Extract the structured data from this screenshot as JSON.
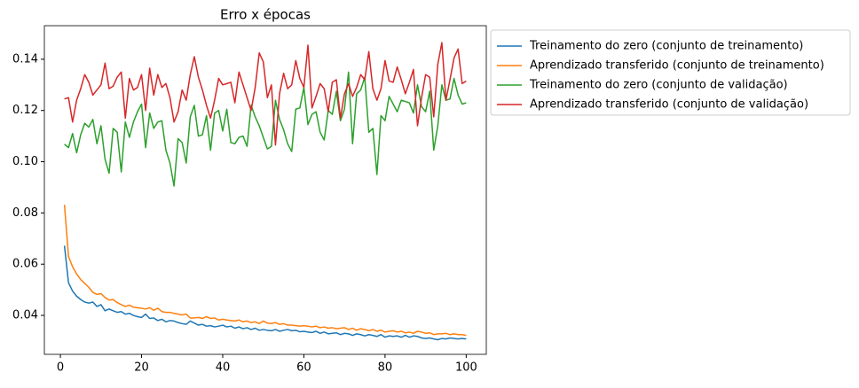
{
  "chart_data": {
    "type": "line",
    "title": "Erro x épocas",
    "x": [
      1,
      2,
      3,
      4,
      5,
      6,
      7,
      8,
      9,
      10,
      11,
      12,
      13,
      14,
      15,
      16,
      17,
      18,
      19,
      20,
      21,
      22,
      23,
      24,
      25,
      26,
      27,
      28,
      29,
      30,
      31,
      32,
      33,
      34,
      35,
      36,
      37,
      38,
      39,
      40,
      41,
      42,
      43,
      44,
      45,
      46,
      47,
      48,
      49,
      50,
      51,
      52,
      53,
      54,
      55,
      56,
      57,
      58,
      59,
      60,
      61,
      62,
      63,
      64,
      65,
      66,
      67,
      68,
      69,
      70,
      71,
      72,
      73,
      74,
      75,
      76,
      77,
      78,
      79,
      80,
      81,
      82,
      83,
      84,
      85,
      86,
      87,
      88,
      89,
      90,
      91,
      92,
      93,
      94,
      95,
      96,
      97,
      98,
      99,
      100
    ],
    "series": [
      {
        "name": "Treinamento do zero (conjunto de treinamento)",
        "color": "#1f77b4",
        "values": [
          0.0672,
          0.0527,
          0.0495,
          0.0475,
          0.0462,
          0.0452,
          0.0448,
          0.0452,
          0.0435,
          0.0442,
          0.0418,
          0.0425,
          0.0418,
          0.0412,
          0.0415,
          0.0405,
          0.0408,
          0.04,
          0.0395,
          0.0392,
          0.0405,
          0.0388,
          0.039,
          0.038,
          0.0385,
          0.0375,
          0.038,
          0.0378,
          0.0372,
          0.0368,
          0.0365,
          0.0378,
          0.037,
          0.0362,
          0.0365,
          0.0358,
          0.036,
          0.0355,
          0.0358,
          0.0362,
          0.0355,
          0.0358,
          0.035,
          0.0355,
          0.0348,
          0.0352,
          0.0345,
          0.035,
          0.0342,
          0.0345,
          0.0342,
          0.034,
          0.0345,
          0.0338,
          0.0342,
          0.0345,
          0.034,
          0.0342,
          0.0336,
          0.0338,
          0.0335,
          0.0333,
          0.0338,
          0.033,
          0.0335,
          0.0328,
          0.033,
          0.0332,
          0.0325,
          0.033,
          0.0328,
          0.0322,
          0.0328,
          0.0325,
          0.032,
          0.0325,
          0.0322,
          0.0318,
          0.0325,
          0.0315,
          0.032,
          0.0318,
          0.032,
          0.0315,
          0.0322,
          0.0315,
          0.032,
          0.0318,
          0.0312,
          0.031,
          0.0312,
          0.0308,
          0.0305,
          0.031,
          0.0308,
          0.0312,
          0.031,
          0.0308,
          0.031,
          0.0308
        ]
      },
      {
        "name": "Aprendizado transferido (conjunto de treinamento)",
        "color": "#ff7f0e",
        "values": [
          0.0832,
          0.063,
          0.059,
          0.0562,
          0.054,
          0.0525,
          0.051,
          0.049,
          0.0482,
          0.0485,
          0.047,
          0.046,
          0.0462,
          0.045,
          0.0442,
          0.0435,
          0.044,
          0.0432,
          0.043,
          0.0428,
          0.0425,
          0.043,
          0.042,
          0.0428,
          0.0415,
          0.0412,
          0.0412,
          0.0408,
          0.0405,
          0.0402,
          0.0405,
          0.039,
          0.039,
          0.0392,
          0.0388,
          0.0395,
          0.0388,
          0.039,
          0.0382,
          0.0385,
          0.0382,
          0.038,
          0.0378,
          0.0382,
          0.0375,
          0.0378,
          0.0372,
          0.0375,
          0.0368,
          0.0378,
          0.037,
          0.0368,
          0.0372,
          0.0365,
          0.0368,
          0.0362,
          0.0362,
          0.036,
          0.0358,
          0.036,
          0.0358,
          0.0355,
          0.0358,
          0.0352,
          0.0355,
          0.035,
          0.0352,
          0.0348,
          0.035,
          0.0352,
          0.0345,
          0.035,
          0.0342,
          0.0348,
          0.0345,
          0.034,
          0.0345,
          0.0338,
          0.0342,
          0.0335,
          0.0338,
          0.034,
          0.0335,
          0.0338,
          0.0332,
          0.0335,
          0.033,
          0.0338,
          0.0335,
          0.033,
          0.0332,
          0.0325,
          0.0328,
          0.0328,
          0.033,
          0.0325,
          0.0328,
          0.0325,
          0.0325,
          0.0322
        ]
      },
      {
        "name": "Treinamento do zero (conjunto de validação)",
        "color": "#2ca02c",
        "values": [
          0.1068,
          0.1055,
          0.111,
          0.1035,
          0.1105,
          0.115,
          0.1135,
          0.1165,
          0.107,
          0.114,
          0.101,
          0.0955,
          0.113,
          0.1115,
          0.096,
          0.1155,
          0.1095,
          0.1155,
          0.1195,
          0.1225,
          0.1055,
          0.119,
          0.113,
          0.1155,
          0.116,
          0.1045,
          0.0995,
          0.0905,
          0.109,
          0.1075,
          0.0995,
          0.1175,
          0.122,
          0.11,
          0.1105,
          0.118,
          0.1045,
          0.119,
          0.12,
          0.112,
          0.1205,
          0.1075,
          0.107,
          0.1095,
          0.11,
          0.106,
          0.122,
          0.1175,
          0.114,
          0.1095,
          0.105,
          0.106,
          0.124,
          0.1165,
          0.1125,
          0.107,
          0.104,
          0.1205,
          0.121,
          0.129,
          0.1145,
          0.1185,
          0.1195,
          0.1115,
          0.1085,
          0.12,
          0.1185,
          0.1275,
          0.116,
          0.1205,
          0.135,
          0.107,
          0.1265,
          0.128,
          0.133,
          0.1115,
          0.113,
          0.095,
          0.118,
          0.116,
          0.1255,
          0.1225,
          0.1195,
          0.124,
          0.1235,
          0.123,
          0.119,
          0.13,
          0.1215,
          0.1195,
          0.1275,
          0.1045,
          0.114,
          0.13,
          0.124,
          0.1245,
          0.1325,
          0.126,
          0.1225,
          0.123
        ]
      },
      {
        "name": "Aprendizado transferido (conjunto de validação)",
        "color": "#d62728",
        "values": [
          0.1245,
          0.125,
          0.1155,
          0.124,
          0.1285,
          0.134,
          0.131,
          0.126,
          0.128,
          0.13,
          0.1385,
          0.1285,
          0.1295,
          0.133,
          0.135,
          0.117,
          0.1325,
          0.128,
          0.129,
          0.134,
          0.12,
          0.1365,
          0.126,
          0.134,
          0.129,
          0.1305,
          0.125,
          0.1155,
          0.1195,
          0.128,
          0.124,
          0.134,
          0.141,
          0.133,
          0.128,
          0.122,
          0.117,
          0.124,
          0.1325,
          0.13,
          0.1305,
          0.131,
          0.123,
          0.135,
          0.13,
          0.125,
          0.12,
          0.129,
          0.1425,
          0.139,
          0.125,
          0.13,
          0.1065,
          0.1265,
          0.1345,
          0.1285,
          0.13,
          0.1395,
          0.1325,
          0.129,
          0.1455,
          0.121,
          0.1255,
          0.1305,
          0.1285,
          0.1195,
          0.131,
          0.132,
          0.117,
          0.1265,
          0.1305,
          0.1255,
          0.129,
          0.134,
          0.132,
          0.143,
          0.1285,
          0.124,
          0.1285,
          0.1395,
          0.1315,
          0.131,
          0.137,
          0.132,
          0.1265,
          0.131,
          0.136,
          0.114,
          0.125,
          0.134,
          0.133,
          0.1175,
          0.138,
          0.1465,
          0.124,
          0.132,
          0.1405,
          0.144,
          0.1305,
          0.1315
        ]
      }
    ],
    "xlim": [
      -3.95,
      104.95
    ],
    "xticks": [
      0,
      20,
      40,
      60,
      80,
      100
    ],
    "ylim": [
      0.0248,
      0.1531
    ],
    "yticks": [
      0.04,
      0.06,
      0.08,
      {
        "value": 0.1,
        "label": "0.10"
      },
      0.12,
      0.14
    ],
    "legend": "outside-upper-right"
  }
}
